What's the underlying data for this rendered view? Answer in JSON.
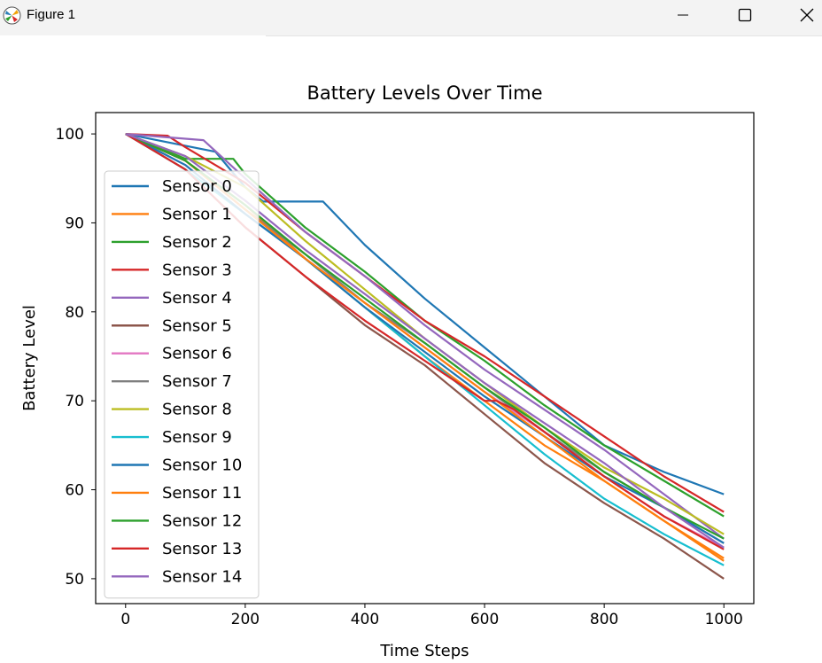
{
  "window": {
    "title": "Figure 1",
    "icon": "matplotlib-icon",
    "controls": [
      "minimize-icon",
      "maximize-icon",
      "close-icon"
    ]
  },
  "chart_data": {
    "type": "line",
    "title": "Battery Levels Over Time",
    "xlabel": "Time Steps",
    "ylabel": "Battery Level",
    "xlim": [
      -50,
      1050
    ],
    "ylim": [
      47.2,
      102.4
    ],
    "xticks": [
      0,
      200,
      400,
      600,
      800,
      1000
    ],
    "yticks": [
      50,
      60,
      70,
      80,
      90,
      100
    ],
    "grid": false,
    "legend_position": "left",
    "series": [
      {
        "name": "Sensor 0",
        "color": "#1f77b4",
        "x": [
          0,
          150,
          200,
          230,
          330,
          400,
          500,
          600,
          700,
          800,
          900,
          1000
        ],
        "y": [
          100,
          98,
          94,
          92.4,
          92.4,
          87.5,
          81.5,
          76,
          70.5,
          65,
          62,
          59.5
        ]
      },
      {
        "name": "Sensor 1",
        "color": "#ff7f0e",
        "x": [
          0,
          100,
          200,
          300,
          400,
          500,
          600,
          700,
          800,
          900,
          1000
        ],
        "y": [
          100,
          97,
          92,
          86,
          80.5,
          75,
          70,
          65,
          61,
          56.5,
          52.3
        ]
      },
      {
        "name": "Sensor 2",
        "color": "#2ca02c",
        "x": [
          0,
          100,
          180,
          200,
          300,
          400,
          500,
          600,
          700,
          800,
          900,
          1000
        ],
        "y": [
          100,
          97.2,
          97.2,
          95.5,
          89.5,
          84.5,
          79,
          74.5,
          69.5,
          65,
          61,
          57
        ]
      },
      {
        "name": "Sensor 3",
        "color": "#d62728",
        "x": [
          0,
          70,
          100,
          200,
          300,
          400,
          500,
          600,
          700,
          800,
          900,
          1000
        ],
        "y": [
          100,
          99.8,
          98.5,
          94.5,
          89,
          84,
          79,
          75,
          70.5,
          66,
          61.5,
          57.5
        ]
      },
      {
        "name": "Sensor 4",
        "color": "#9467bd",
        "x": [
          0,
          130,
          200,
          300,
          400,
          500,
          600,
          700,
          800,
          900,
          1000
        ],
        "y": [
          100,
          99.3,
          95,
          89,
          84,
          78.5,
          73.5,
          69,
          64.5,
          59.5,
          54.5
        ]
      },
      {
        "name": "Sensor 5",
        "color": "#8c564b",
        "x": [
          0,
          100,
          200,
          300,
          400,
          500,
          600,
          700,
          800,
          900,
          1000
        ],
        "y": [
          100,
          96,
          89.5,
          84,
          78.5,
          74,
          68.5,
          63,
          58.5,
          54.5,
          50
        ]
      },
      {
        "name": "Sensor 6",
        "color": "#e377c2",
        "x": [
          0,
          100,
          200,
          300,
          400,
          500,
          600,
          700,
          800,
          900,
          1000
        ],
        "y": [
          100,
          96.5,
          91,
          86,
          81,
          76,
          71,
          66.5,
          61.5,
          57,
          53.5
        ]
      },
      {
        "name": "Sensor 7",
        "color": "#7f7f7f",
        "x": [
          0,
          100,
          200,
          300,
          400,
          500,
          600,
          700,
          800,
          900,
          1000
        ],
        "y": [
          100,
          97,
          91.5,
          86.5,
          81,
          76.5,
          71.5,
          66.5,
          62,
          58,
          54
        ]
      },
      {
        "name": "Sensor 8",
        "color": "#bcbd22",
        "x": [
          0,
          100,
          200,
          300,
          400,
          500,
          600,
          700,
          800,
          900,
          1000
        ],
        "y": [
          100,
          97.5,
          94,
          88,
          82.5,
          77,
          72,
          67,
          62.5,
          59,
          55
        ]
      },
      {
        "name": "Sensor 9",
        "color": "#17becf",
        "x": [
          0,
          100,
          200,
          300,
          400,
          500,
          600,
          700,
          800,
          900,
          1000
        ],
        "y": [
          100,
          96,
          91,
          86,
          80.5,
          75,
          69.5,
          64,
          59,
          55,
          51.5
        ]
      },
      {
        "name": "Sensor 10",
        "color": "#1f77b4",
        "x": [
          0,
          100,
          200,
          300,
          400,
          500,
          600,
          700,
          800,
          900,
          1000
        ],
        "y": [
          100,
          96.5,
          91,
          86,
          80.5,
          75.5,
          70.5,
          66,
          61.5,
          58,
          54
        ]
      },
      {
        "name": "Sensor 11",
        "color": "#ff7f0e",
        "x": [
          0,
          100,
          200,
          300,
          400,
          500,
          600,
          700,
          800,
          900,
          1000
        ],
        "y": [
          100,
          97,
          91.5,
          86,
          81,
          76,
          71,
          66,
          61,
          56.5,
          52
        ]
      },
      {
        "name": "Sensor 12",
        "color": "#2ca02c",
        "x": [
          0,
          100,
          200,
          300,
          400,
          500,
          600,
          700,
          800,
          900,
          1000
        ],
        "y": [
          100,
          97,
          92,
          86.5,
          81.5,
          76.5,
          71.5,
          67,
          62,
          58,
          54.5
        ]
      },
      {
        "name": "Sensor 13",
        "color": "#d62728",
        "x": [
          0,
          100,
          200,
          300,
          400,
          500,
          600,
          620,
          650,
          700,
          800,
          900,
          1000
        ],
        "y": [
          100,
          96,
          89.5,
          84,
          79,
          74.5,
          70,
          70,
          69,
          66.5,
          61.5,
          57,
          53.3
        ]
      },
      {
        "name": "Sensor 14",
        "color": "#9467bd",
        "x": [
          0,
          100,
          200,
          300,
          400,
          500,
          600,
          700,
          800,
          900,
          1000
        ],
        "y": [
          100,
          97.5,
          92.5,
          87,
          82,
          77,
          72,
          67.5,
          63,
          58,
          53.5
        ]
      }
    ]
  }
}
